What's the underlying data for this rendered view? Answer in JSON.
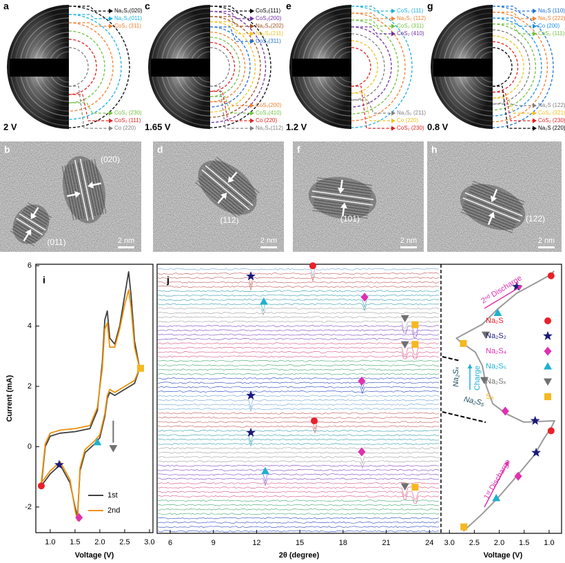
{
  "saed": [
    {
      "letter": "a",
      "voltage": "2 V",
      "top": [
        {
          "label": "Na₂S₂(020)",
          "color": "#000000"
        },
        {
          "label": "Na₂S₂(011)",
          "color": "#1ab0e0"
        },
        {
          "label": "CoS₂ (311)",
          "color": "#f08030"
        }
      ],
      "bottom": [
        {
          "label": "CoS₂ (230)",
          "color": "#70c040"
        },
        {
          "label": "CoS₂ (111)",
          "color": "#e02020"
        },
        {
          "label": "Co (220)",
          "color": "#808080"
        }
      ]
    },
    {
      "letter": "c",
      "voltage": "1.65 V",
      "top": [
        {
          "label": "CoS₂(111)",
          "color": "#000000"
        },
        {
          "label": "CoS₂(200)",
          "color": "#7030a0"
        },
        {
          "label": "Na₂S₄(202)",
          "color": "#a05020"
        },
        {
          "label": "Na₂S₄(211)",
          "color": "#f0c020"
        },
        {
          "label": "CoS₂(311)",
          "color": "#2070d0"
        }
      ],
      "bottom": [
        {
          "label": "CoS₂(200)",
          "color": "#f08030"
        },
        {
          "label": "CoS₂(410)",
          "color": "#70c040"
        },
        {
          "label": "Co (220)",
          "color": "#e02020"
        },
        {
          "label": "Na₂S₄(112)",
          "color": "#808080"
        }
      ]
    },
    {
      "letter": "e",
      "voltage": "1.2 V",
      "top": [
        {
          "label": "CoS₂ (111)",
          "color": "#1ab0e0"
        },
        {
          "label": "Na₂S₂ (112)",
          "color": "#f08030"
        },
        {
          "label": "CoS₂ (311)",
          "color": "#70c040"
        },
        {
          "label": "CoS₂ (410)",
          "color": "#7030a0"
        }
      ],
      "bottom": [
        {
          "label": "Na₂S₂ (211)",
          "color": "#808080"
        },
        {
          "label": "Co (220)",
          "color": "#f0c020"
        },
        {
          "label": "CoS₂ (230)",
          "color": "#e02020"
        }
      ]
    },
    {
      "letter": "g",
      "voltage": "0.8 V",
      "top": [
        {
          "label": "Na₂S (110)",
          "color": "#2070d0"
        },
        {
          "label": "Na₂S (222)",
          "color": "#f08030"
        },
        {
          "label": "Co (200)",
          "color": "#1a90e0"
        },
        {
          "label": "CoS₂ (111)",
          "color": "#70c040"
        }
      ],
      "bottom": [
        {
          "label": "Na₂S (122)",
          "color": "#808080"
        },
        {
          "label": "CoS₂ (321)",
          "color": "#f0c020"
        },
        {
          "label": "CoS₂ (230)",
          "color": "#e02020"
        },
        {
          "label": "Na₂S (220)",
          "color": "#000000"
        }
      ]
    }
  ],
  "tem": [
    {
      "letter": "b",
      "planes": [
        "(020)",
        "(011)"
      ],
      "scale": "2 nm"
    },
    {
      "letter": "d",
      "planes": [
        "(112)"
      ],
      "scale": "2 nm"
    },
    {
      "letter": "f",
      "planes": [
        "(101)"
      ],
      "scale": "2 nm"
    },
    {
      "letter": "h",
      "planes": [
        "(122)"
      ],
      "scale": "2 nm"
    }
  ],
  "chart_data": [
    {
      "type": "line",
      "label": "i",
      "xlabel": "Voltage (V)",
      "ylabel": "Current (mA)",
      "xlim": [
        0.71,
        3.07
      ],
      "ylim": [
        -2.85,
        6.05
      ],
      "xticks": [
        {
          "value": 1,
          "label": "1.0"
        },
        1.5,
        {
          "value": 2,
          "label": "2.0"
        },
        2.5,
        {
          "value": 3,
          "label": "3.0"
        }
      ],
      "yticks": [
        -2,
        0,
        2,
        4,
        6
      ],
      "series": [
        {
          "name": "1st",
          "color": "#404040",
          "x": [
            0.82,
            0.9,
            1.0,
            1.2,
            1.5,
            1.8,
            1.95,
            2.05,
            2.1,
            2.15,
            2.2,
            2.3,
            2.4,
            2.5,
            2.58,
            2.63,
            2.7,
            2.8,
            2.7,
            2.5,
            2.3,
            2.2,
            2.15,
            2.1,
            2.0,
            1.9,
            1.7,
            1.6,
            1.55,
            1.5,
            1.4,
            1.2,
            1.0,
            0.82
          ],
          "values": [
            -1.3,
            0.0,
            0.35,
            0.45,
            0.5,
            0.6,
            1.2,
            2.8,
            4.2,
            4.5,
            3.6,
            3.4,
            4.0,
            5.0,
            5.8,
            5.0,
            3.5,
            2.6,
            2.1,
            1.9,
            1.7,
            1.8,
            1.6,
            1.0,
            0.3,
            0.1,
            -0.2,
            -0.8,
            -2.3,
            -2.0,
            -1.2,
            -0.6,
            -0.9,
            -1.3
          ]
        },
        {
          "name": "2nd",
          "color": "#f0900a",
          "x": [
            0.82,
            0.9,
            1.0,
            1.2,
            1.5,
            1.8,
            1.95,
            2.05,
            2.1,
            2.15,
            2.2,
            2.3,
            2.4,
            2.5,
            2.58,
            2.63,
            2.7,
            2.8,
            2.7,
            2.5,
            2.3,
            2.2,
            2.15,
            2.1,
            2.0,
            1.9,
            1.7,
            1.6,
            1.55,
            1.5,
            1.4,
            1.2,
            1.0,
            0.82
          ],
          "values": [
            -1.2,
            0.1,
            0.45,
            0.55,
            0.6,
            0.7,
            1.3,
            2.6,
            3.9,
            4.1,
            3.3,
            3.3,
            3.9,
            4.7,
            5.2,
            4.6,
            3.3,
            2.6,
            2.2,
            2.0,
            1.8,
            1.9,
            1.7,
            1.1,
            0.4,
            0.2,
            -0.1,
            -0.7,
            -2.45,
            -2.1,
            -1.1,
            -0.5,
            -0.8,
            -1.2
          ]
        }
      ],
      "markers": {
        "x": [
          0.82,
          1.18,
          1.58,
          1.95,
          2.27,
          2.82
        ],
        "values": [
          -1.3,
          -0.6,
          -2.35,
          0.15,
          -0.05,
          2.6
        ],
        "shape": [
          "circle",
          "star",
          "diamond",
          "triangle",
          "down",
          "square"
        ]
      }
    },
    {
      "type": "xrd",
      "label": "j",
      "xlabel": "2θ (degree)",
      "xlim": [
        5.09,
        24.8
      ],
      "xticks": [
        6,
        9,
        12,
        15,
        18,
        21,
        24
      ],
      "markers": {
        "x": [
          15.9,
          11.6,
          19.5,
          12.5,
          22.3,
          23.0,
          22.3,
          23.0,
          19.3,
          11.6,
          16.0,
          11.6,
          19.3,
          12.6,
          22.3,
          23.0
        ],
        "scan": [
          60,
          57.6,
          52.8,
          51.8,
          48,
          46.5,
          42,
          42,
          33.6,
          30.3,
          24.5,
          21.8,
          17.4,
          13,
          9.5,
          9.3
        ],
        "shape": [
          "circle",
          "star",
          "diamond",
          "triangle",
          "down",
          "square",
          "down",
          "square",
          "diamond",
          "star",
          "circle",
          "star",
          "diamond",
          "triangle",
          "down",
          "square"
        ]
      }
    },
    {
      "type": "profile",
      "xlabel": "Voltage (V)",
      "xlim": [
        3.1,
        0.75
      ],
      "xticks": [
        {
          "value": 3,
          "label": "3.0"
        },
        2.5,
        {
          "value": 2,
          "label": "2.0"
        },
        1.5,
        {
          "value": 1,
          "label": "1.0"
        }
      ],
      "series": [
        {
          "color": "#9a9a9a",
          "voltage": [
            2.72,
            2.34,
            2.03,
            1.65,
            1.3,
            1.1,
            0.96,
            0.89,
            1.51,
            1.86,
            2.13,
            2.26,
            2.34,
            2.48,
            2.78,
            2.86,
            2.34,
            2.03,
            1.65,
            1.26,
            0.96,
            0.9
          ],
          "scan": [
            0,
            4,
            7.6,
            12.6,
            17.4,
            21.3,
            23.7,
            25.3,
            25,
            26.9,
            29.2,
            33.2,
            37.9,
            41,
            43.4,
            44.2,
            47.4,
            50.9,
            54.5,
            56.9,
            58.8,
            59.6
          ]
        }
      ],
      "markers": {
        "voltage": [
          2.71,
          2.06,
          1.62,
          1.26,
          0.96,
          1.28,
          1.88,
          2.3,
          2.72,
          2.27,
          2.03,
          1.65,
          0.96
        ],
        "scan": [
          1,
          7.6,
          12.6,
          18,
          23,
          25.3,
          27.5,
          34.6,
          43,
          45,
          50,
          56,
          58.5
        ],
        "shape": [
          "square",
          "triangle",
          "diamond",
          "star",
          "circle",
          "star",
          "diamond",
          "down",
          "square",
          "down",
          "triangle",
          "star",
          "circle"
        ]
      },
      "legend": [
        {
          "name": "Na₂S",
          "color": "#e8202a",
          "shape": "circle"
        },
        {
          "name": "Na₂S₂",
          "color": "#1a1a7a",
          "shape": "star"
        },
        {
          "name": "Na₂S₄",
          "color": "#e030b0",
          "shape": "diamond"
        },
        {
          "name": "Na₂S₅",
          "color": "#20b0d0",
          "shape": "triangle"
        },
        {
          "name": "Na₂Sₓ",
          "color": "#707070",
          "shape": "down"
        },
        {
          "name": "S₈",
          "color": "#f5b820",
          "shape": "square"
        }
      ],
      "annotations": [
        "2ⁿᵈ Discharge",
        "1ˢᵗ Discharge",
        "Charge",
        "Na₂Sₓ",
        "Na₂S₅"
      ]
    }
  ]
}
